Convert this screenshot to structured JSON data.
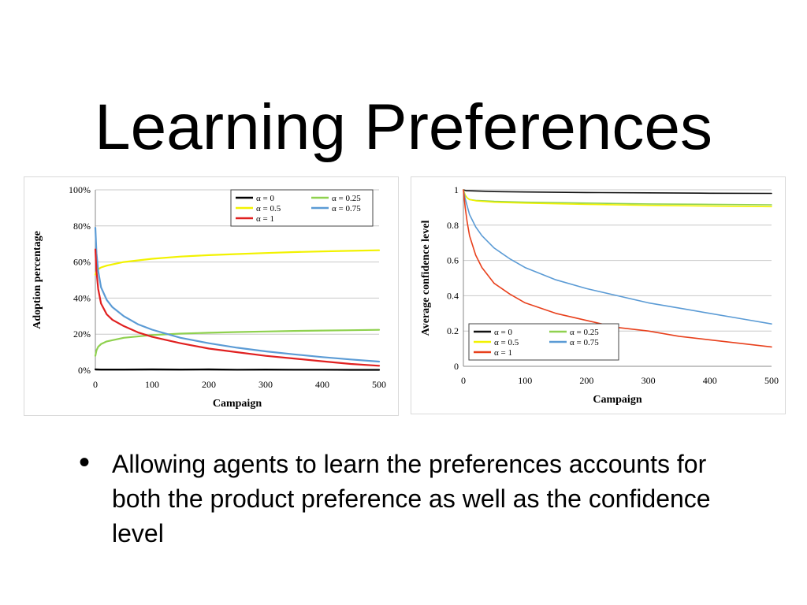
{
  "slide": {
    "title": "Learning Preferences",
    "bullet": "Allowing agents to learn the preferences accounts for both the product preference as well as the confidence level"
  },
  "chart_data": [
    {
      "type": "line",
      "xlabel": "Campaign",
      "ylabel": "Adoption percentage",
      "xlim": [
        0,
        500
      ],
      "ylim": [
        0,
        100
      ],
      "x_ticks": [
        0,
        100,
        200,
        300,
        400,
        500
      ],
      "x_tick_labels": [
        "0",
        "100",
        "200",
        "300",
        "400",
        "500"
      ],
      "y_ticks": [
        0,
        20,
        40,
        60,
        80,
        100
      ],
      "y_tick_labels": [
        "0%",
        "20%",
        "40%",
        "60%",
        "80%",
        "100%"
      ],
      "grid": true,
      "legend_position": "top-right",
      "series": [
        {
          "name": "α = 0",
          "color": "#000000",
          "x": [
            0,
            10,
            50,
            100,
            150,
            200,
            250,
            300,
            350,
            400,
            450,
            500
          ],
          "y": [
            0.5,
            0.4,
            0.4,
            0.5,
            0.4,
            0.5,
            0.3,
            0.4,
            0.3,
            0.3,
            0.2,
            0.2
          ]
        },
        {
          "name": "α = 0.25",
          "color": "#8fd14f",
          "x": [
            0,
            2,
            5,
            10,
            20,
            50,
            100,
            150,
            200,
            250,
            300,
            350,
            400,
            450,
            500
          ],
          "y": [
            8,
            11,
            13,
            14.5,
            16,
            18,
            19.5,
            20.3,
            20.8,
            21.2,
            21.5,
            21.8,
            22,
            22.2,
            22.4
          ]
        },
        {
          "name": "α = 0.5",
          "color": "#f2f200",
          "x": [
            0,
            2,
            5,
            10,
            20,
            50,
            100,
            150,
            200,
            250,
            300,
            350,
            400,
            450,
            500
          ],
          "y": [
            53,
            55,
            56,
            57,
            58,
            60,
            61.8,
            63,
            63.8,
            64.4,
            65,
            65.5,
            65.9,
            66.2,
            66.5
          ]
        },
        {
          "name": "α = 0.75",
          "color": "#5b9bd5",
          "x": [
            0,
            2,
            5,
            10,
            20,
            30,
            50,
            75,
            100,
            150,
            200,
            250,
            300,
            350,
            400,
            450,
            500
          ],
          "y": [
            79,
            65,
            55,
            46,
            39,
            35,
            30,
            25.5,
            22.5,
            18,
            15,
            12.5,
            10.5,
            8.8,
            7.3,
            6,
            4.8
          ]
        },
        {
          "name": "α = 1",
          "color": "#e02020",
          "x": [
            0,
            2,
            5,
            10,
            20,
            30,
            50,
            75,
            100,
            150,
            200,
            250,
            300,
            350,
            400,
            450,
            500
          ],
          "y": [
            67,
            55,
            45,
            37,
            31,
            28,
            24.5,
            21,
            18.5,
            15,
            12,
            10,
            8,
            6.5,
            5,
            3.5,
            2.5
          ]
        }
      ]
    },
    {
      "type": "line",
      "xlabel": "Campaign",
      "ylabel": "Average confidence level",
      "xlim": [
        0,
        500
      ],
      "ylim": [
        0,
        1
      ],
      "x_ticks": [
        0,
        100,
        200,
        300,
        400,
        500
      ],
      "x_tick_labels": [
        "0",
        "100",
        "200",
        "300",
        "400",
        "500"
      ],
      "y_ticks": [
        0,
        0.2,
        0.4,
        0.6,
        0.8,
        1
      ],
      "y_tick_labels": [
        "0",
        "0.2",
        "0.4",
        "0.6",
        "0.8",
        "1"
      ],
      "grid": true,
      "legend_position": "bottom-left",
      "series": [
        {
          "name": "α = 0",
          "color": "#111111",
          "x": [
            0,
            5,
            50,
            100,
            200,
            300,
            400,
            500
          ],
          "y": [
            1,
            0.995,
            0.99,
            0.988,
            0.985,
            0.983,
            0.981,
            0.98
          ]
        },
        {
          "name": "α = 0.25",
          "color": "#8fd14f",
          "x": [
            0,
            3,
            6,
            10,
            20,
            50,
            100,
            200,
            300,
            400,
            500
          ],
          "y": [
            1,
            0.97,
            0.955,
            0.945,
            0.94,
            0.935,
            0.93,
            0.925,
            0.92,
            0.918,
            0.915
          ]
        },
        {
          "name": "α = 0.5",
          "color": "#f2f200",
          "x": [
            0,
            3,
            6,
            10,
            20,
            50,
            100,
            200,
            300,
            400,
            500
          ],
          "y": [
            1,
            0.97,
            0.955,
            0.945,
            0.938,
            0.93,
            0.925,
            0.918,
            0.912,
            0.908,
            0.905
          ]
        },
        {
          "name": "α = 0.75",
          "color": "#5b9bd5",
          "x": [
            0,
            3,
            6,
            10,
            20,
            30,
            50,
            75,
            100,
            150,
            200,
            250,
            300,
            350,
            400,
            450,
            500
          ],
          "y": [
            1,
            0.95,
            0.91,
            0.86,
            0.79,
            0.74,
            0.67,
            0.61,
            0.56,
            0.49,
            0.44,
            0.4,
            0.36,
            0.33,
            0.3,
            0.27,
            0.24
          ]
        },
        {
          "name": "α = 1",
          "color": "#e8401c",
          "x": [
            0,
            3,
            6,
            10,
            20,
            30,
            50,
            75,
            100,
            150,
            200,
            250,
            300,
            350,
            400,
            450,
            500
          ],
          "y": [
            1,
            0.9,
            0.82,
            0.74,
            0.63,
            0.56,
            0.47,
            0.41,
            0.36,
            0.3,
            0.26,
            0.22,
            0.2,
            0.17,
            0.15,
            0.13,
            0.11
          ]
        }
      ]
    }
  ]
}
